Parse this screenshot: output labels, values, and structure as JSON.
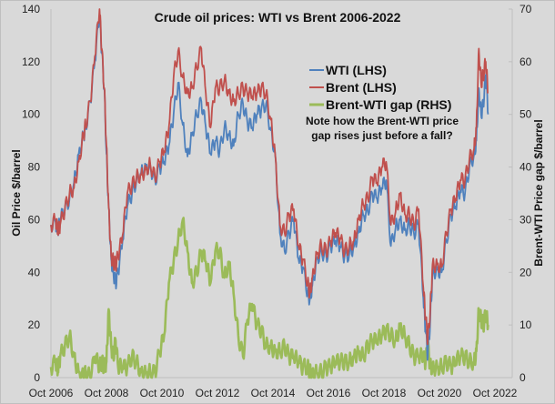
{
  "chart_data": {
    "type": "line",
    "title": "Crude oil prices: WTI vs Brent 2006-2022",
    "xlabel": "",
    "ylabel": "Oil Price $/barrel",
    "y2label": "Brent-WTI Price gap $/barrel",
    "ylim": [
      0,
      140
    ],
    "y2lim": [
      0,
      70
    ],
    "yticks": [
      0,
      20,
      40,
      60,
      80,
      100,
      120,
      140
    ],
    "y2ticks": [
      0,
      10,
      20,
      30,
      40,
      50,
      60,
      70
    ],
    "xlim": [
      2006.75,
      2022.9
    ],
    "xticks": [
      {
        "label": "Oct 2006",
        "x": 2006.75
      },
      {
        "label": "Oct 2008",
        "x": 2008.75
      },
      {
        "label": "Oct 2010",
        "x": 2010.75
      },
      {
        "label": "Oct 2012",
        "x": 2012.75
      },
      {
        "label": "Oct 2014",
        "x": 2014.75
      },
      {
        "label": "Oct 2016",
        "x": 2016.75
      },
      {
        "label": "Oct 2018",
        "x": 2018.75
      },
      {
        "label": "Oct 2020",
        "x": 2020.75
      },
      {
        "label": "Oct 2022",
        "x": 2022.75
      }
    ],
    "grid": false,
    "legend_position": "upper-center-right",
    "annotation": "Note how the Brent-WTI price gap rises just before a fall?",
    "annotation_lines": [
      "Note how the Brent-WTI price",
      "gap rises just before a fall?"
    ],
    "x": [
      2006.75,
      2006.92,
      2007.0,
      2007.08,
      2007.25,
      2007.42,
      2007.58,
      2007.75,
      2007.92,
      2008.0,
      2008.17,
      2008.33,
      2008.5,
      2008.58,
      2008.67,
      2008.75,
      2008.83,
      2008.92,
      2009.0,
      2009.08,
      2009.17,
      2009.33,
      2009.5,
      2009.67,
      2009.83,
      2010.0,
      2010.17,
      2010.33,
      2010.5,
      2010.67,
      2010.83,
      2011.0,
      2011.17,
      2011.33,
      2011.5,
      2011.67,
      2011.83,
      2012.0,
      2012.17,
      2012.33,
      2012.5,
      2012.67,
      2012.83,
      2013.0,
      2013.17,
      2013.33,
      2013.5,
      2013.67,
      2013.83,
      2014.0,
      2014.17,
      2014.33,
      2014.5,
      2014.67,
      2014.83,
      2015.0,
      2015.17,
      2015.33,
      2015.5,
      2015.67,
      2015.83,
      2016.0,
      2016.08,
      2016.17,
      2016.33,
      2016.5,
      2016.67,
      2016.83,
      2017.0,
      2017.17,
      2017.33,
      2017.5,
      2017.67,
      2017.83,
      2018.0,
      2018.17,
      2018.33,
      2018.5,
      2018.67,
      2018.83,
      2019.0,
      2019.17,
      2019.33,
      2019.5,
      2019.67,
      2019.83,
      2020.0,
      2020.17,
      2020.25,
      2020.33,
      2020.42,
      2020.5,
      2020.67,
      2020.83,
      2021.0,
      2021.17,
      2021.33,
      2021.5,
      2021.67,
      2021.83,
      2022.0,
      2022.08,
      2022.17,
      2022.25,
      2022.33,
      2022.42,
      2022.5
    ],
    "series": [
      {
        "name": "WTI (LHS)",
        "axis": "left",
        "color": "#4f81bd",
        "values": [
          58,
          59,
          55,
          60,
          64,
          68,
          74,
          85,
          92,
          95,
          105,
          120,
          138,
          124,
          110,
          85,
          65,
          45,
          40,
          36,
          40,
          52,
          65,
          70,
          75,
          78,
          80,
          80,
          75,
          80,
          82,
          88,
          100,
          112,
          96,
          84,
          92,
          100,
          105,
          95,
          85,
          90,
          86,
          95,
          92,
          88,
          100,
          104,
          97,
          95,
          100,
          102,
          104,
          94,
          85,
          55,
          48,
          55,
          60,
          45,
          42,
          32,
          30,
          35,
          45,
          48,
          46,
          50,
          52,
          50,
          46,
          47,
          50,
          55,
          62,
          63,
          70,
          68,
          72,
          75,
          50,
          57,
          60,
          56,
          58,
          55,
          58,
          30,
          18,
          8,
          22,
          40,
          41,
          40,
          52,
          62,
          65,
          71,
          70,
          80,
          85,
          90,
          110,
          100,
          104,
          115,
          100
        ]
      },
      {
        "name": "Brent (LHS)",
        "axis": "left",
        "color": "#c0504d",
        "values": [
          58,
          60,
          55,
          58,
          64,
          70,
          72,
          82,
          92,
          96,
          105,
          122,
          140,
          125,
          110,
          88,
          65,
          46,
          44,
          43,
          46,
          54,
          70,
          73,
          76,
          77,
          79,
          81,
          76,
          82,
          86,
          95,
          114,
          124,
          114,
          108,
          110,
          118,
          125,
          108,
          95,
          110,
          110,
          113,
          108,
          105,
          108,
          110,
          108,
          107,
          108,
          110,
          108,
          98,
          85,
          58,
          55,
          62,
          64,
          50,
          45,
          36,
          32,
          38,
          47,
          50,
          48,
          52,
          55,
          53,
          48,
          50,
          52,
          60,
          66,
          68,
          76,
          74,
          80,
          82,
          58,
          63,
          70,
          62,
          62,
          58,
          64,
          34,
          23,
          14,
          26,
          43,
          43,
          42,
          55,
          64,
          68,
          75,
          75,
          83,
          87,
          95,
          125,
          112,
          115,
          120,
          108
        ]
      },
      {
        "name": "Brent-WTI gap (RHS)",
        "axis": "right",
        "color": "#9bbb59",
        "values": [
          2,
          3,
          1,
          4,
          6,
          8,
          4,
          1,
          0,
          1,
          0,
          4,
          2,
          3,
          2,
          3,
          13,
          6,
          4,
          7,
          2,
          2,
          2,
          4,
          3,
          1,
          1,
          1,
          1,
          5,
          8,
          18,
          22,
          26,
          30,
          24,
          18,
          20,
          24,
          22,
          18,
          24,
          24,
          19,
          22,
          16,
          8,
          4,
          11,
          14,
          10,
          9,
          6,
          6,
          5,
          5,
          6,
          4,
          4,
          3,
          2,
          2,
          1,
          1,
          1,
          1,
          2,
          2,
          3,
          3,
          3,
          3,
          4,
          5,
          4,
          6,
          7,
          7,
          8,
          9,
          8,
          7,
          10,
          8,
          6,
          4,
          4,
          4,
          3,
          6,
          2,
          2,
          2,
          2,
          3,
          2,
          3,
          4,
          4,
          3,
          3,
          5,
          13,
          11,
          10,
          12,
          10
        ]
      }
    ]
  },
  "legend": [
    {
      "label": "WTI (LHS)",
      "color": "#4f81bd"
    },
    {
      "label": "Brent (LHS)",
      "color": "#c0504d"
    },
    {
      "label": "Brent-WTI gap (RHS)",
      "color": "#9bbb59"
    }
  ]
}
